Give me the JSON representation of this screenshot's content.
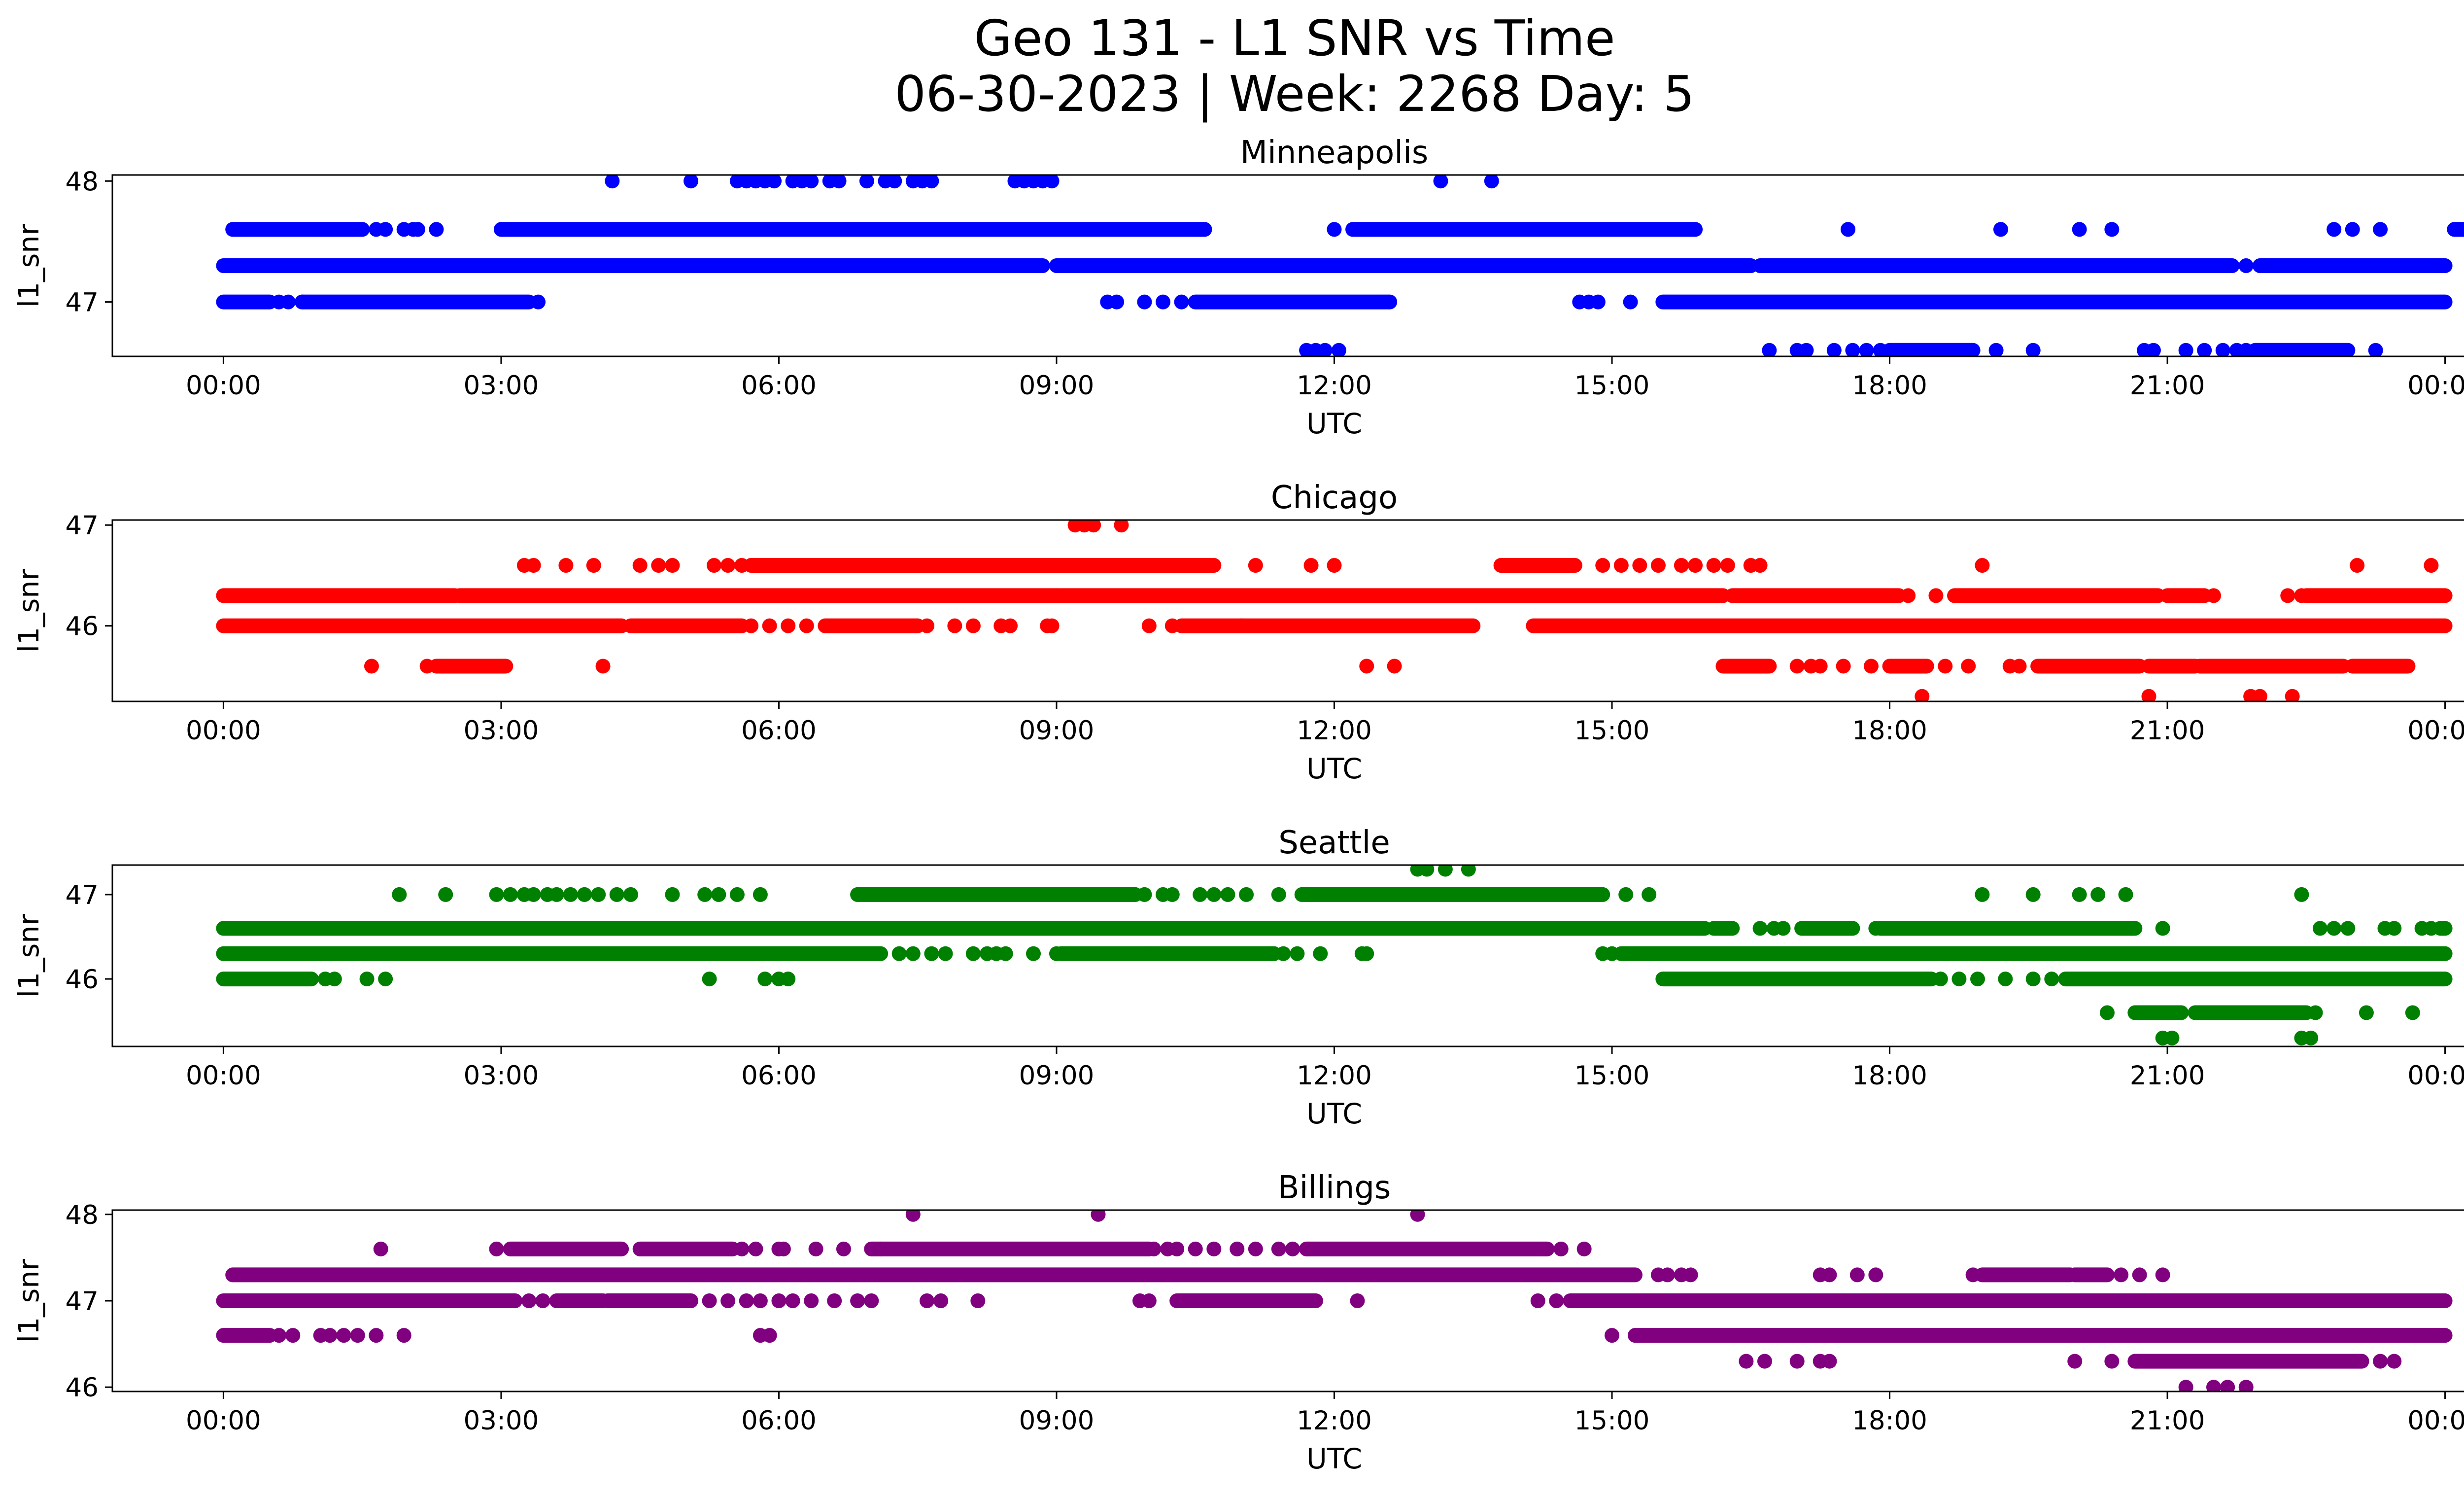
{
  "figure": {
    "title_line1": "Geo 131 - L1 SNR vs Time",
    "title_line2": "06-30-2023 | Week: 2268 Day: 5"
  },
  "chart_data": [
    {
      "type": "scatter",
      "title": "Minneapolis",
      "xlabel": "UTC",
      "ylabel": "l1_snr",
      "color": "#0000ff",
      "xticks": [
        "00:00",
        "03:00",
        "06:00",
        "09:00",
        "12:00",
        "15:00",
        "18:00",
        "21:00",
        "00:00"
      ],
      "xlim_hours": [
        -1.2,
        25.2
      ],
      "ylim": [
        46.55,
        48.05
      ],
      "yticks": [
        47,
        48
      ],
      "levels": [
        {
          "y": 48.0,
          "segments": [],
          "points": [
            4.2,
            5.05,
            5.55,
            5.65,
            5.75,
            5.85,
            5.95,
            6.15,
            6.25,
            6.35,
            6.55,
            6.65,
            6.95,
            7.15,
            7.25,
            7.45,
            7.55,
            7.65,
            8.55,
            8.65,
            8.75,
            8.85,
            8.95,
            13.15,
            13.7
          ]
        },
        {
          "y": 47.6,
          "segments": [
            [
              0.1,
              1.5
            ],
            [
              3.0,
              10.6
            ],
            [
              12.2,
              15.9
            ],
            [
              24.1,
              24.2
            ]
          ],
          "points": [
            1.65,
            1.75,
            1.95,
            2.05,
            2.1,
            2.3,
            12.0,
            17.55,
            19.2,
            20.05,
            20.4,
            22.8,
            23.0,
            23.3
          ]
        },
        {
          "y": 47.3,
          "segments": [
            [
              0.0,
              8.85
            ],
            [
              9.0,
              16.5
            ],
            [
              16.6,
              21.7
            ],
            [
              22.0,
              24.0
            ]
          ],
          "points": [
            21.85,
            22.75
          ]
        },
        {
          "y": 47.0,
          "segments": [
            [
              0.0,
              0.5
            ],
            [
              0.85,
              3.3
            ],
            [
              10.5,
              12.6
            ],
            [
              15.55,
              24.0
            ]
          ],
          "points": [
            0.6,
            0.7,
            0.85,
            3.4,
            9.55,
            9.65,
            9.95,
            10.15,
            10.35,
            14.65,
            14.75,
            14.85,
            15.2
          ]
        },
        {
          "y": 46.6,
          "segments": [
            [
              18.0,
              18.9
            ],
            [
              21.95,
              22.95
            ]
          ],
          "points": [
            11.7,
            11.8,
            11.9,
            12.05,
            16.7,
            17.0,
            17.1,
            17.4,
            17.6,
            17.75,
            17.9,
            19.15,
            19.55,
            20.75,
            20.85,
            21.2,
            21.4,
            21.6,
            21.75,
            21.85,
            23.25
          ]
        }
      ]
    },
    {
      "type": "scatter",
      "title": "Chicago",
      "xlabel": "UTC",
      "ylabel": "l1_snr",
      "color": "#ff0000",
      "xticks": [
        "00:00",
        "03:00",
        "06:00",
        "09:00",
        "12:00",
        "15:00",
        "18:00",
        "21:00",
        "00:00"
      ],
      "xlim_hours": [
        -1.2,
        25.2
      ],
      "ylim": [
        45.25,
        47.05
      ],
      "yticks": [
        46,
        47
      ],
      "levels": [
        {
          "y": 47.0,
          "segments": [],
          "points": [
            9.2,
            9.3,
            9.4,
            9.7
          ]
        },
        {
          "y": 46.6,
          "segments": [
            [
              5.7,
              9.3
            ],
            [
              9.3,
              10.7
            ],
            [
              13.8,
              14.6
            ]
          ],
          "points": [
            3.25,
            3.35,
            3.7,
            4.0,
            4.5,
            4.7,
            4.85,
            5.3,
            5.45,
            5.6,
            11.15,
            11.75,
            12.0,
            14.9,
            15.1,
            15.3,
            15.5,
            15.75,
            15.9,
            16.1,
            16.25,
            16.5,
            16.6,
            19.0,
            23.05,
            23.85
          ]
        },
        {
          "y": 46.3,
          "segments": [
            [
              0.0,
              2.5
            ],
            [
              2.55,
              9.0
            ],
            [
              9.0,
              16.2
            ],
            [
              16.3,
              18.1
            ],
            [
              18.7,
              20.9
            ],
            [
              21.0,
              21.4
            ],
            [
              22.5,
              24.0
            ]
          ],
          "points": [
            18.2,
            18.5,
            21.5,
            22.3,
            22.45
          ]
        },
        {
          "y": 46.0,
          "segments": [
            [
              0.0,
              4.3
            ],
            [
              4.4,
              5.6
            ],
            [
              6.5,
              7.5
            ],
            [
              10.35,
              13.5
            ],
            [
              14.15,
              24.0
            ]
          ],
          "points": [
            5.7,
            5.9,
            6.1,
            6.3,
            7.6,
            7.9,
            8.1,
            8.4,
            8.5,
            8.9,
            8.95,
            10.0,
            10.25,
            11.0
          ]
        },
        {
          "y": 45.6,
          "segments": [
            [
              2.3,
              3.05
            ],
            [
              16.2,
              16.7
            ],
            [
              18.0,
              18.4
            ],
            [
              19.6,
              20.7
            ],
            [
              20.8,
              21.3
            ],
            [
              21.35,
              22.9
            ],
            [
              23.0,
              23.6
            ]
          ],
          "points": [
            1.6,
            2.2,
            4.1,
            12.35,
            12.65,
            17.0,
            17.15,
            17.25,
            17.5,
            17.8,
            18.6,
            18.85,
            19.3,
            19.4
          ]
        },
        {
          "y": 45.3,
          "segments": [],
          "points": [
            18.35,
            20.8,
            21.9,
            22.0,
            22.35
          ]
        }
      ]
    },
    {
      "type": "scatter",
      "title": "Seattle",
      "xlabel": "UTC",
      "ylabel": "l1_snr",
      "color": "#008000",
      "xticks": [
        "00:00",
        "03:00",
        "06:00",
        "09:00",
        "12:00",
        "15:00",
        "18:00",
        "21:00",
        "00:00"
      ],
      "xlim_hours": [
        -1.2,
        25.2
      ],
      "ylim": [
        45.2,
        47.35
      ],
      "yticks": [
        46,
        47
      ],
      "levels": [
        {
          "y": 47.3,
          "segments": [],
          "points": [
            12.9,
            13.0,
            13.2,
            13.45
          ]
        },
        {
          "y": 47.0,
          "segments": [
            [
              6.85,
              9.85
            ],
            [
              11.65,
              14.9
            ]
          ],
          "points": [
            1.9,
            2.4,
            2.95,
            3.1,
            3.25,
            3.35,
            3.5,
            3.6,
            3.75,
            3.9,
            4.05,
            4.25,
            4.4,
            4.85,
            5.2,
            5.35,
            5.55,
            5.8,
            9.95,
            10.15,
            10.25,
            10.55,
            10.7,
            10.85,
            11.05,
            11.4,
            15.15,
            15.4,
            19.0,
            19.55,
            20.05,
            20.25,
            20.55,
            22.45
          ]
        },
        {
          "y": 46.6,
          "segments": [
            [
              0.0,
              16.0
            ],
            [
              16.1,
              16.3
            ],
            [
              17.05,
              17.6
            ],
            [
              17.9,
              20.65
            ],
            [
              23.95,
              24.0
            ]
          ],
          "points": [
            16.6,
            16.75,
            16.85,
            17.85,
            20.95,
            22.65,
            22.8,
            22.95,
            23.35,
            23.45,
            23.75,
            23.85
          ]
        },
        {
          "y": 46.3,
          "segments": [
            [
              0.0,
              7.1
            ],
            [
              9.05,
              10.0
            ],
            [
              10.0,
              11.35
            ],
            [
              15.1,
              24.0
            ]
          ],
          "points": [
            7.3,
            7.45,
            7.65,
            7.8,
            8.1,
            8.25,
            8.35,
            8.45,
            8.75,
            9.0,
            11.45,
            11.6,
            11.85,
            12.3,
            12.35,
            14.9,
            15.0
          ]
        },
        {
          "y": 46.0,
          "segments": [
            [
              0.0,
              0.95
            ],
            [
              15.55,
              18.45
            ],
            [
              19.9,
              24.0
            ]
          ],
          "points": [
            1.1,
            1.2,
            1.55,
            1.75,
            5.25,
            5.85,
            6.0,
            6.1,
            18.55,
            18.75,
            18.95,
            19.25,
            19.55,
            19.75
          ]
        },
        {
          "y": 45.6,
          "segments": [
            [
              20.65,
              21.15
            ],
            [
              21.3,
              22.5
            ]
          ],
          "points": [
            20.35,
            22.6,
            23.15,
            23.65
          ]
        },
        {
          "y": 45.3,
          "segments": [],
          "points": [
            20.95,
            21.05,
            22.45,
            22.55
          ]
        }
      ]
    },
    {
      "type": "scatter",
      "title": "Billings",
      "xlabel": "UTC",
      "ylabel": "l1_snr",
      "color": "#800080",
      "xticks": [
        "00:00",
        "03:00",
        "06:00",
        "09:00",
        "12:00",
        "15:00",
        "18:00",
        "21:00",
        "00:00"
      ],
      "xlim_hours": [
        -1.2,
        25.2
      ],
      "ylim": [
        45.95,
        48.05
      ],
      "yticks": [
        46,
        47,
        48
      ],
      "levels": [
        {
          "y": 48.0,
          "segments": [],
          "points": [
            7.45,
            9.45,
            12.9
          ]
        },
        {
          "y": 47.6,
          "segments": [
            [
              3.1,
              4.3
            ],
            [
              4.5,
              5.5
            ],
            [
              7.0,
              10.0
            ],
            [
              11.7,
              14.3
            ]
          ],
          "points": [
            1.7,
            2.95,
            5.6,
            5.75,
            6.0,
            6.05,
            6.4,
            6.7,
            7.1,
            10.05,
            10.2,
            10.3,
            10.5,
            10.7,
            10.95,
            11.15,
            11.4,
            11.55,
            14.45,
            14.7
          ]
        },
        {
          "y": 47.3,
          "segments": [
            [
              0.1,
              15.25
            ],
            [
              19.0,
              19.95
            ],
            [
              20.0,
              20.35
            ]
          ],
          "points": [
            15.5,
            15.6,
            15.75,
            15.85,
            17.25,
            17.35,
            17.65,
            17.85,
            18.9,
            20.5,
            20.7,
            20.95
          ]
        },
        {
          "y": 47.0,
          "segments": [
            [
              0.0,
              3.15
            ],
            [
              3.6,
              4.1
            ],
            [
              4.15,
              5.05
            ],
            [
              10.3,
              11.8
            ],
            [
              14.55,
              24.0
            ]
          ],
          "points": [
            3.3,
            3.45,
            5.25,
            5.45,
            5.65,
            5.8,
            6.0,
            6.15,
            6.35,
            6.6,
            6.85,
            7.0,
            7.6,
            7.75,
            8.15,
            9.9,
            10.0,
            12.25,
            14.2,
            14.4,
            21.2,
            21.55,
            22.4
          ]
        },
        {
          "y": 46.6,
          "segments": [
            [
              0.0,
              0.5
            ],
            [
              15.25,
              24.0
            ]
          ],
          "points": [
            0.6,
            0.75,
            1.05,
            1.15,
            1.3,
            1.45,
            1.65,
            1.95,
            5.8,
            5.9,
            15.0
          ]
        },
        {
          "y": 46.3,
          "segments": [
            [
              20.65,
              23.1
            ]
          ],
          "points": [
            16.45,
            16.65,
            17.0,
            17.25,
            17.35,
            20.0,
            20.4,
            23.3,
            23.45
          ]
        },
        {
          "y": 46.0,
          "segments": [],
          "points": [
            21.2,
            21.5,
            21.65,
            21.85
          ]
        }
      ]
    }
  ]
}
